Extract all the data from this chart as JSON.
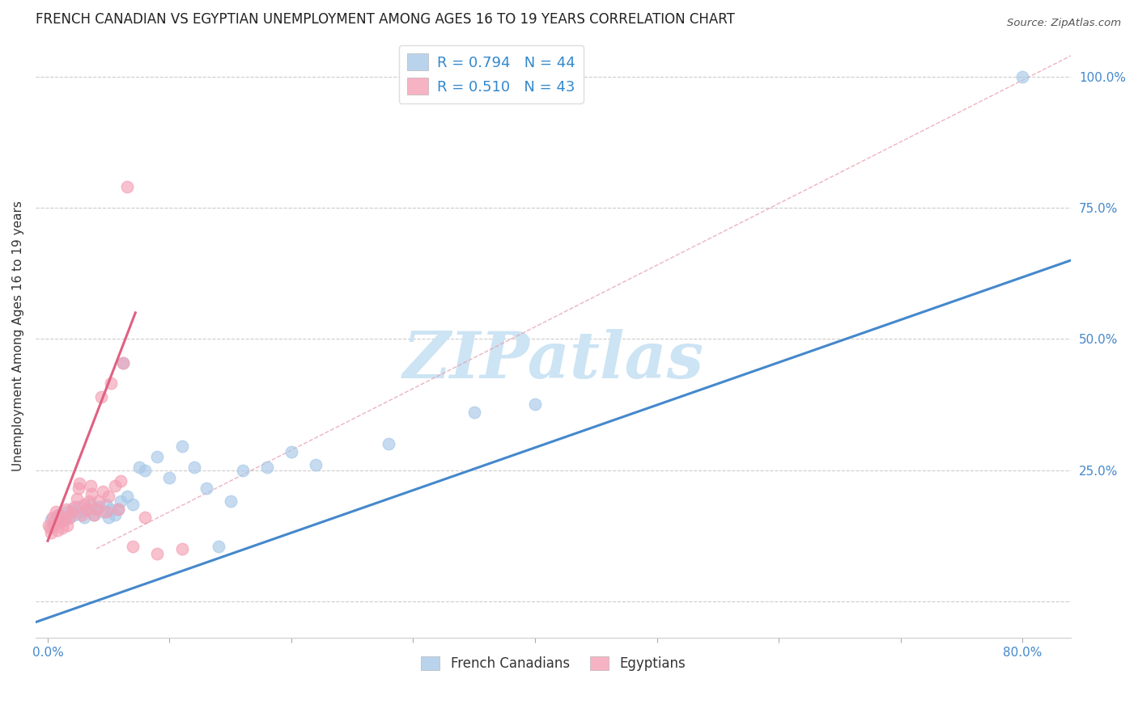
{
  "title": "FRENCH CANADIAN VS EGYPTIAN UNEMPLOYMENT AMONG AGES 16 TO 19 YEARS CORRELATION CHART",
  "source": "Source: ZipAtlas.com",
  "xlim": [
    -0.01,
    0.84
  ],
  "ylim": [
    -0.07,
    1.08
  ],
  "watermark": "ZIPatlas",
  "legend_entry1": "R = 0.794   N = 44",
  "legend_entry2": "R = 0.510   N = 43",
  "legend_label1": "French Canadians",
  "legend_label2": "Egyptians",
  "blue_color": "#a8c8e8",
  "pink_color": "#f4a0b5",
  "blue_line_color": "#4488cc",
  "pink_line_color": "#e06080",
  "ylabel": "Unemployment Among Ages 16 to 19 years",
  "blue_scatter_x": [
    0.003,
    0.005,
    0.008,
    0.01,
    0.012,
    0.015,
    0.018,
    0.02,
    0.022,
    0.025,
    0.028,
    0.03,
    0.032,
    0.035,
    0.038,
    0.04,
    0.042,
    0.045,
    0.048,
    0.05,
    0.052,
    0.055,
    0.058,
    0.06,
    0.062,
    0.065,
    0.07,
    0.075,
    0.08,
    0.09,
    0.1,
    0.11,
    0.12,
    0.13,
    0.14,
    0.15,
    0.16,
    0.18,
    0.2,
    0.22,
    0.28,
    0.35,
    0.4,
    0.8
  ],
  "blue_scatter_y": [
    0.155,
    0.145,
    0.16,
    0.165,
    0.155,
    0.17,
    0.16,
    0.175,
    0.165,
    0.18,
    0.17,
    0.16,
    0.175,
    0.185,
    0.165,
    0.175,
    0.18,
    0.17,
    0.185,
    0.16,
    0.175,
    0.165,
    0.175,
    0.19,
    0.455,
    0.2,
    0.185,
    0.255,
    0.25,
    0.275,
    0.235,
    0.295,
    0.255,
    0.215,
    0.105,
    0.19,
    0.25,
    0.255,
    0.285,
    0.26,
    0.3,
    0.36,
    0.375,
    1.0
  ],
  "pink_scatter_x": [
    0.001,
    0.002,
    0.003,
    0.004,
    0.005,
    0.006,
    0.007,
    0.008,
    0.009,
    0.01,
    0.012,
    0.014,
    0.015,
    0.016,
    0.018,
    0.02,
    0.022,
    0.024,
    0.025,
    0.026,
    0.028,
    0.03,
    0.032,
    0.034,
    0.035,
    0.036,
    0.038,
    0.04,
    0.042,
    0.044,
    0.045,
    0.048,
    0.05,
    0.052,
    0.055,
    0.058,
    0.06,
    0.062,
    0.065,
    0.07,
    0.08,
    0.09,
    0.11
  ],
  "pink_scatter_y": [
    0.145,
    0.14,
    0.13,
    0.16,
    0.145,
    0.155,
    0.17,
    0.135,
    0.165,
    0.15,
    0.14,
    0.155,
    0.175,
    0.145,
    0.16,
    0.17,
    0.18,
    0.195,
    0.215,
    0.225,
    0.165,
    0.185,
    0.175,
    0.19,
    0.22,
    0.205,
    0.165,
    0.175,
    0.19,
    0.39,
    0.21,
    0.17,
    0.2,
    0.415,
    0.22,
    0.175,
    0.23,
    0.455,
    0.79,
    0.105,
    0.16,
    0.09,
    0.1
  ],
  "blue_line_x0": -0.01,
  "blue_line_x1": 0.84,
  "blue_line_y0": -0.04,
  "blue_line_y1": 0.65,
  "pink_line_x0": 0.0,
  "pink_line_x1": 0.072,
  "pink_line_y0": 0.115,
  "pink_line_y1": 0.55,
  "diag_line_x0": 0.04,
  "diag_line_x1": 0.84,
  "diag_line_y0": 0.1,
  "diag_line_y1": 1.04,
  "ytick_positions": [
    0.0,
    0.25,
    0.5,
    0.75,
    1.0
  ],
  "ytick_labels": [
    "",
    "25.0%",
    "50.0%",
    "75.0%",
    "100.0%"
  ],
  "xtick_positions": [
    0.0,
    0.1,
    0.2,
    0.3,
    0.4,
    0.5,
    0.6,
    0.7,
    0.8
  ],
  "xtick_labels": [
    "0.0%",
    "",
    "",
    "",
    "",
    "",
    "",
    "",
    "80.0%"
  ],
  "title_fontsize": 12,
  "tick_fontsize": 11,
  "ylabel_fontsize": 11,
  "axis_tick_color": "#4488cc",
  "grid_color": "#cccccc",
  "watermark_color": "#cce4f4",
  "watermark_fontsize": 58,
  "scatter_size": 110,
  "scatter_alpha": 0.65,
  "legend_fontsize": 13,
  "legend_R_color": "#3388cc",
  "legend_N_color": "#333333"
}
